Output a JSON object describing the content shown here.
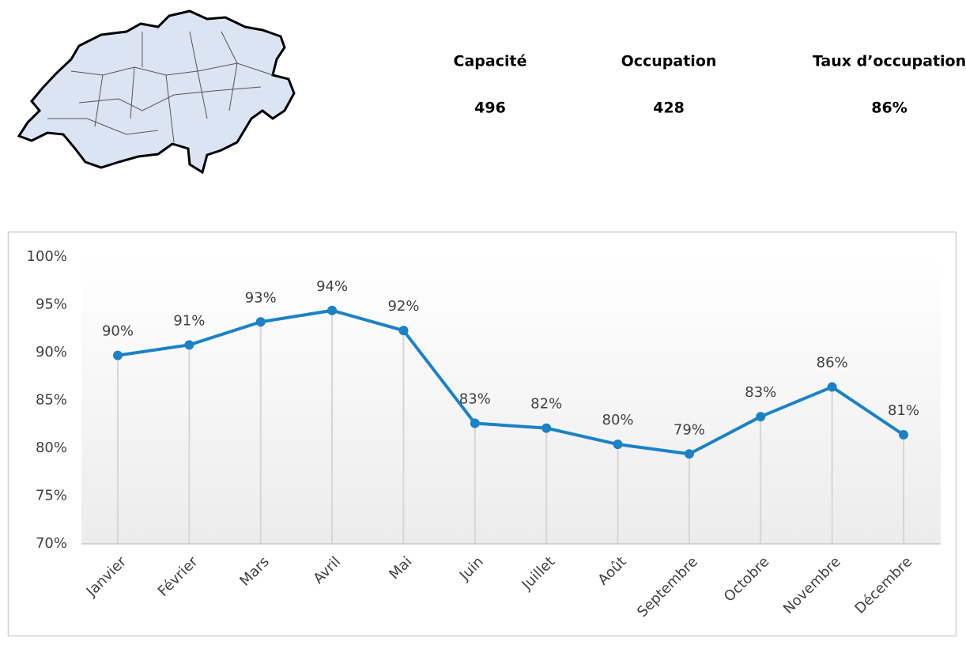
{
  "kpis": [
    {
      "label": "Capacité",
      "value": "496"
    },
    {
      "label": "Occupation",
      "value": "428"
    },
    {
      "label": "Taux d’occupation",
      "value": "86%"
    }
  ],
  "chart_data": {
    "type": "line",
    "categories": [
      "Janvier",
      "Février",
      "Mars",
      "Avril",
      "Mai",
      "Juin",
      "Juillet",
      "Août",
      "Septembre",
      "Octobre",
      "Novembre",
      "Décembre"
    ],
    "values": [
      89.7,
      90.8,
      93.2,
      94.4,
      92.3,
      82.6,
      82.1,
      80.4,
      79.4,
      83.3,
      86.4,
      81.4
    ],
    "value_labels": [
      "90%",
      "91%",
      "93%",
      "94%",
      "92%",
      "83%",
      "82%",
      "80%",
      "79%",
      "83%",
      "86%",
      "81%"
    ],
    "color": "#1b82c6",
    "ylim": [
      70,
      100
    ],
    "yticks": [
      {
        "value": 70,
        "label": "70%"
      },
      {
        "value": 75,
        "label": "75%"
      },
      {
        "value": 80,
        "label": "80%"
      },
      {
        "value": 85,
        "label": "85%"
      },
      {
        "value": 90,
        "label": "90%"
      },
      {
        "value": 95,
        "label": "95%"
      },
      {
        "value": 100,
        "label": "100%"
      }
    ],
    "grid": false,
    "drop_lines": true
  }
}
